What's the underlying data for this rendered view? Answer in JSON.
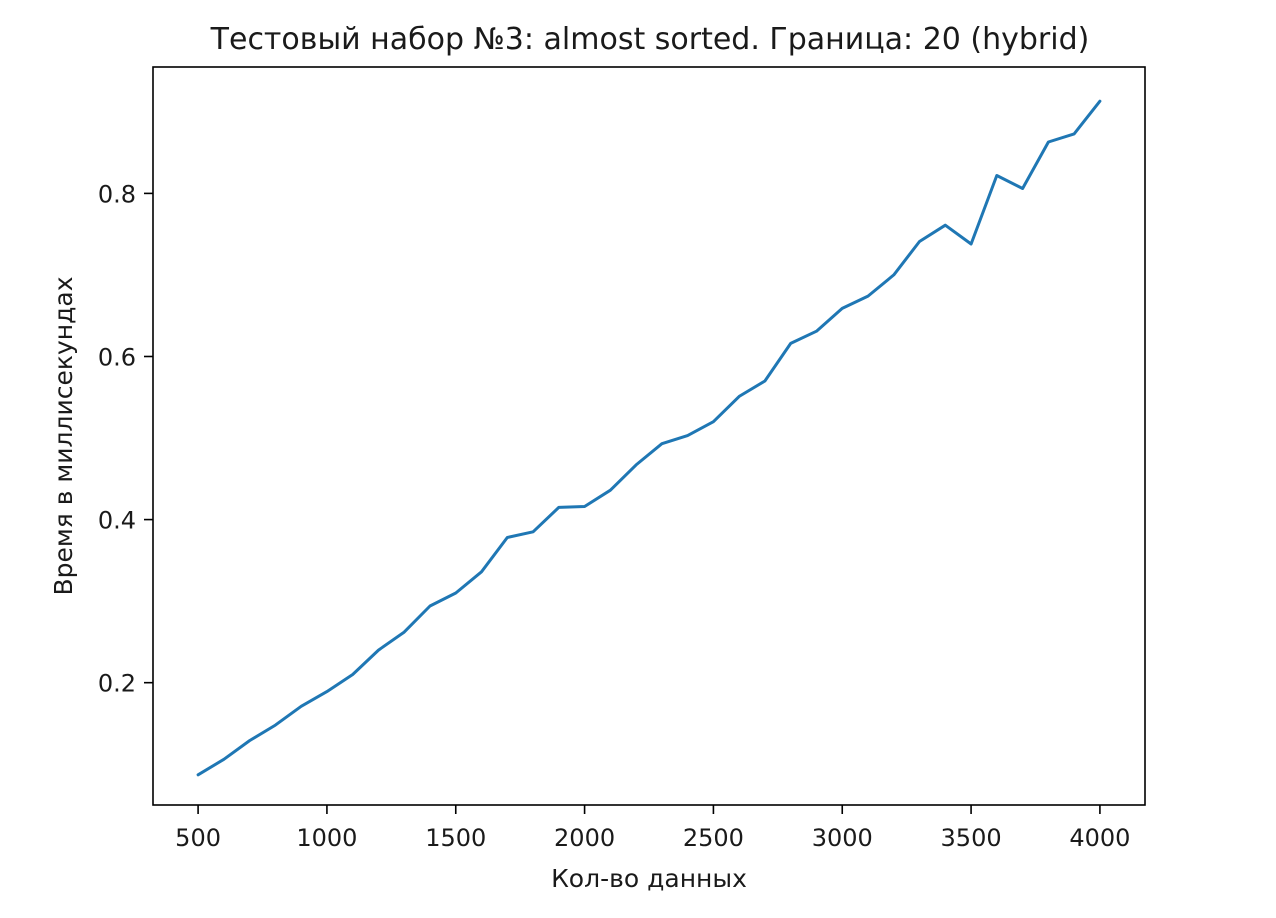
{
  "chart_data": {
    "type": "line",
    "title": "Тестовый набор №3: almost sorted. Граница: 20 (hybrid)",
    "xlabel": "Кол-во данных",
    "ylabel": "Время в миллисекундах",
    "xlim": [
      325,
      4175
    ],
    "ylim": [
      0.05,
      0.955
    ],
    "x_ticks": [
      500,
      1000,
      1500,
      2000,
      2500,
      3000,
      3500,
      4000
    ],
    "x_tick_labels": [
      "500",
      "1000",
      "1500",
      "2000",
      "2500",
      "3000",
      "3500",
      "4000"
    ],
    "y_ticks": [
      0.2,
      0.4,
      0.6,
      0.8
    ],
    "y_tick_labels": [
      "0.2",
      "0.4",
      "0.6",
      "0.8"
    ],
    "grid": false,
    "line_color": "#1f77b4",
    "x": [
      500,
      600,
      700,
      800,
      900,
      1000,
      1100,
      1200,
      1300,
      1400,
      1500,
      1600,
      1700,
      1800,
      1900,
      2000,
      2100,
      2200,
      2300,
      2400,
      2500,
      2600,
      2700,
      2800,
      2900,
      3000,
      3100,
      3200,
      3300,
      3400,
      3500,
      3600,
      3700,
      3800,
      3900,
      4000
    ],
    "series": [
      {
        "values": [
          0.087,
          0.106,
          0.129,
          0.148,
          0.171,
          0.189,
          0.21,
          0.24,
          0.262,
          0.294,
          0.31,
          0.336,
          0.378,
          0.385,
          0.415,
          0.416,
          0.436,
          0.467,
          0.493,
          0.503,
          0.52,
          0.551,
          0.57,
          0.616,
          0.631,
          0.659,
          0.674,
          0.7,
          0.741,
          0.761,
          0.738,
          0.822,
          0.806,
          0.863,
          0.873,
          0.913
        ]
      }
    ]
  }
}
